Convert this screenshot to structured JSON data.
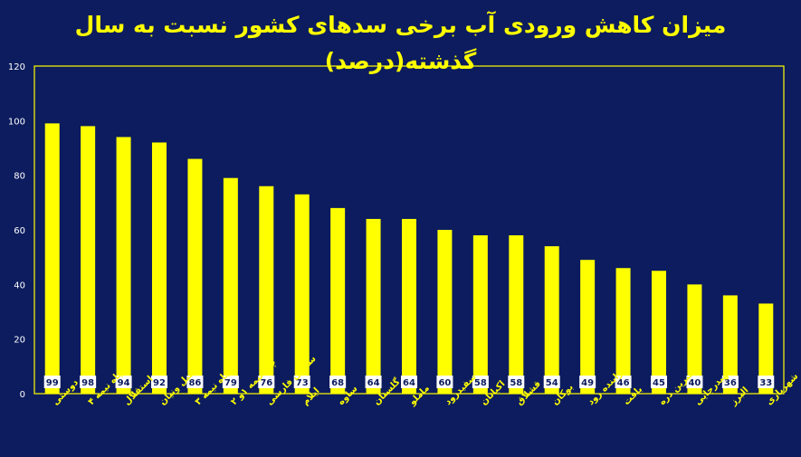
{
  "chart_data": {
    "type": "bar",
    "title": "میزان کاهش ورودی آب برخی سدهای کشور نسبت به سال گذشته(درصد)",
    "categories": [
      "دوستی",
      "چاه نیمه ۴",
      "استقلال",
      "شمیل ونیان",
      "چاه نیمه ۳",
      "چاه نیمه ۱و ۲",
      "سلمان فارسی",
      "ایلام",
      "ساوه",
      "گلستان",
      "ماملو",
      "سفیدرود",
      "اکباتان",
      "قشلاق",
      "بوکان",
      "زاینده رود",
      "بافت",
      "شیرین دره",
      "شهیدرجایی",
      "البرز",
      "شهریاری"
    ],
    "values": [
      99,
      98,
      94,
      92,
      86,
      79,
      76,
      73,
      68,
      64,
      64,
      60,
      58,
      58,
      54,
      49,
      46,
      45,
      40,
      36,
      33
    ],
    "yticks": [
      "0",
      "20",
      "40",
      "60",
      "80",
      "100",
      "120"
    ],
    "ylim": [
      0,
      120
    ],
    "grid": false,
    "legend": "none",
    "colors": {
      "background": "#0c1c5e",
      "bar": "#ffff00",
      "axis": "#ffff00",
      "tick_text": "#ffffff",
      "label_box": "#ffffff"
    }
  }
}
